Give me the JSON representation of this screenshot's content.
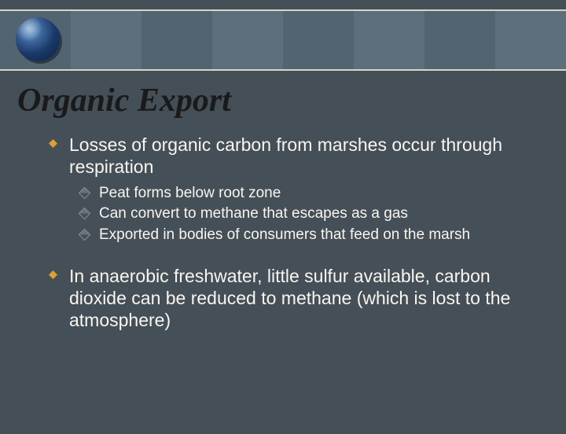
{
  "colors": {
    "background": "#454f58",
    "text": "#f8f6ee",
    "title_color": "#1a1a1a",
    "bullet1_fill": "#e0a030",
    "bullet2_border": "#8a9098",
    "header_border": "#d8d4c8"
  },
  "typography": {
    "title_font": "Times New Roman italic",
    "title_fontsize": 42,
    "body_font": "Verdana",
    "level1_fontsize": 23,
    "level2_fontsize": 19
  },
  "slide": {
    "title": "Organic Export",
    "bullets": [
      {
        "text": "Losses of organic carbon from marshes occur through respiration",
        "sub": [
          "Peat forms below root zone",
          "Can convert to methane that escapes as a gas",
          "Exported in bodies of consumers that feed on the marsh"
        ]
      },
      {
        "text": "In anaerobic freshwater, little sulfur available, carbon dioxide can be reduced to methane (which is lost to the atmosphere)",
        "sub": []
      }
    ]
  }
}
